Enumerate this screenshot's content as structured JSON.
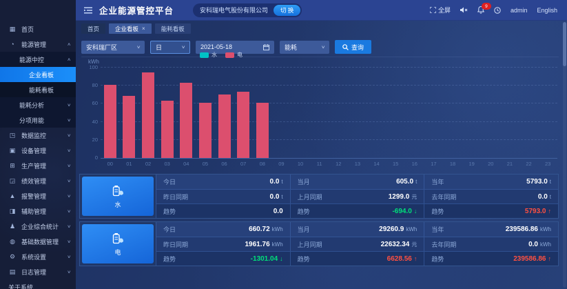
{
  "header": {
    "title": "企业能源管控平台",
    "company": "安科瑞电气股份有限公司",
    "switch_label": "切 换",
    "fullscreen_label": "全屏",
    "notification_count": "9",
    "username": "admin",
    "language": "English"
  },
  "sidebar": {
    "items": [
      {
        "label": "首页",
        "icon": "home-icon",
        "level": 0
      },
      {
        "label": "能源管理",
        "icon": "energy-management-icon",
        "level": 0,
        "arrow": "up"
      },
      {
        "label": "能源中控",
        "level": 1,
        "arrow": "up"
      },
      {
        "label": "企业看板",
        "level": 2,
        "active": true
      },
      {
        "label": "能耗看板",
        "level": 2
      },
      {
        "label": "能耗分析",
        "level": 1,
        "arrow": "down"
      },
      {
        "label": "分项用能",
        "level": 1,
        "arrow": "down"
      },
      {
        "label": "数据监控",
        "icon": "data-monitor-icon",
        "level": 0,
        "arrow": "down"
      },
      {
        "label": "设备管理",
        "icon": "device-management-icon",
        "level": 0,
        "arrow": "down"
      },
      {
        "label": "生产管理",
        "icon": "production-management-icon",
        "level": 0,
        "arrow": "down"
      },
      {
        "label": "绩效管理",
        "icon": "performance-management-icon",
        "level": 0,
        "arrow": "down"
      },
      {
        "label": "报警管理",
        "icon": "alarm-management-icon",
        "level": 0,
        "arrow": "down"
      },
      {
        "label": "辅助管理",
        "icon": "auxiliary-management-icon",
        "level": 0,
        "arrow": "down"
      },
      {
        "label": "企业综合统计",
        "icon": "enterprise-stats-icon",
        "level": 0,
        "arrow": "down"
      },
      {
        "label": "基础数据管理",
        "icon": "base-data-icon",
        "level": 0,
        "arrow": "down"
      },
      {
        "label": "系统设置",
        "icon": "system-settings-icon",
        "level": 0,
        "arrow": "down"
      },
      {
        "label": "日志管理",
        "icon": "log-management-icon",
        "level": 0,
        "arrow": "down"
      },
      {
        "label": "关于系统",
        "level": 0
      }
    ]
  },
  "tabs": [
    {
      "label": "首页",
      "active": false,
      "closable": false
    },
    {
      "label": "企业看板",
      "active": true,
      "closable": true
    },
    {
      "label": "能耗看板",
      "active": false,
      "closable": false
    }
  ],
  "filters": {
    "area": "安科瑞厂区",
    "period": "日",
    "date": "2021-05-18",
    "type": "能耗",
    "search_label": "查询"
  },
  "chart_data": {
    "type": "bar",
    "title": "",
    "xlabel": "",
    "ylabel": "kWh",
    "ylim": [
      0,
      100
    ],
    "yticks": [
      0,
      20,
      40,
      60,
      80,
      100
    ],
    "grid": "dashed-horizontal",
    "legend_position": "top",
    "categories": [
      "00",
      "01",
      "02",
      "03",
      "04",
      "05",
      "06",
      "07",
      "08",
      "09",
      "10",
      "11",
      "12",
      "13",
      "14",
      "15",
      "16",
      "17",
      "18",
      "19",
      "20",
      "21",
      "22",
      "23"
    ],
    "series": [
      {
        "name": "水",
        "color": "#00c3c5",
        "values": [
          null,
          null,
          null,
          null,
          null,
          null,
          null,
          null,
          null,
          null,
          null,
          null,
          null,
          null,
          null,
          null,
          null,
          null,
          null,
          null,
          null,
          null,
          null,
          null
        ]
      },
      {
        "name": "电",
        "color": "#dc4f6e",
        "values": [
          81,
          69,
          95,
          63,
          83,
          61,
          70,
          73,
          61,
          null,
          null,
          null,
          null,
          null,
          null,
          null,
          null,
          null,
          null,
          null,
          null,
          null,
          null,
          null
        ]
      }
    ]
  },
  "summary": {
    "rows": [
      {
        "name": "水",
        "icon": "water-meter-icon",
        "cells": [
          {
            "label": "今日",
            "value": "0.0",
            "unit": "t"
          },
          {
            "label": "当月",
            "value": "605.0",
            "unit": "t"
          },
          {
            "label": "当年",
            "value": "5793.0",
            "unit": "t"
          },
          {
            "label": "昨日同期",
            "value": "0.0",
            "unit": "t"
          },
          {
            "label": "上月同期",
            "value": "1299.0",
            "unit": "元"
          },
          {
            "label": "去年同期",
            "value": "0.0",
            "unit": "t"
          },
          {
            "label": "趋势",
            "value": "0.0",
            "unit": "",
            "trend": "flat"
          },
          {
            "label": "趋势",
            "value": "-694.0",
            "unit": "",
            "trend": "down"
          },
          {
            "label": "趋势",
            "value": "5793.0",
            "unit": "",
            "trend": "up"
          }
        ]
      },
      {
        "name": "电",
        "icon": "electric-meter-icon",
        "cells": [
          {
            "label": "今日",
            "value": "660.72",
            "unit": "kWh"
          },
          {
            "label": "当月",
            "value": "29260.9",
            "unit": "kWh"
          },
          {
            "label": "当年",
            "value": "239586.86",
            "unit": "kWh"
          },
          {
            "label": "昨日同期",
            "value": "1961.76",
            "unit": "kWh"
          },
          {
            "label": "上月同期",
            "value": "22632.34",
            "unit": "元"
          },
          {
            "label": "去年同期",
            "value": "0.0",
            "unit": "kWh"
          },
          {
            "label": "趋势",
            "value": "-1301.04",
            "unit": "",
            "trend": "down"
          },
          {
            "label": "趋势",
            "value": "6628.56",
            "unit": "",
            "trend": "up"
          },
          {
            "label": "趋势",
            "value": "239586.86",
            "unit": "",
            "trend": "up"
          }
        ]
      }
    ]
  }
}
